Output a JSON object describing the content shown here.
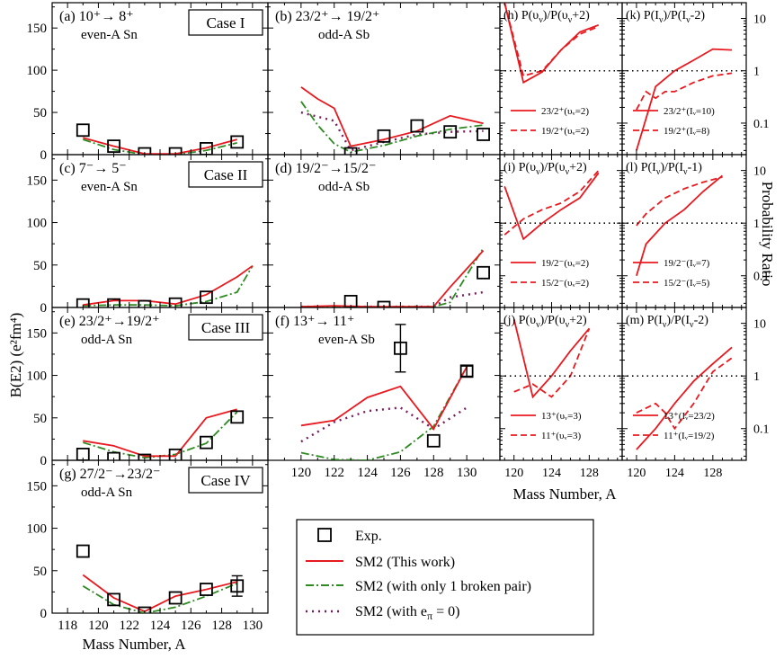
{
  "colors": {
    "sm2": "#e8191f",
    "one_pair": "#2e8b22",
    "epi0": "#7a1a5e",
    "exp": "#000000",
    "ratio": "#e8191f"
  },
  "axes": {
    "left_ylabel": "B(E2) (e²fm⁴)",
    "left_xlabel": "Mass Number, A",
    "right_xlabel": "Mass Number, A",
    "right_ylabel": "Probability Ratio",
    "left_yticks": [
      "0",
      "50",
      "100",
      "150"
    ],
    "left_xticks_col1": [
      "118",
      "120",
      "122",
      "124",
      "126",
      "128",
      "130"
    ],
    "left_xticks_col2": [
      "120",
      "122",
      "124",
      "126",
      "128",
      "130"
    ],
    "right_xticks": [
      "120",
      "124",
      "128"
    ],
    "right_yticks": [
      "0.1",
      "1",
      "10"
    ]
  },
  "legend": {
    "exp": "Exp.",
    "sm2": "SM2 (This work)",
    "one_pair": "SM2 (with only 1 broken pair)",
    "epi0": "SM2 (with e",
    "epi0_sub": "π",
    "epi0_tail": " = 0)"
  },
  "chart_data": [
    {
      "id": "a",
      "type": "line",
      "title": "(a)  10⁺→ 8⁺",
      "subtitle": "even-A Sn",
      "case": "Case I",
      "ylim": [
        0,
        180
      ],
      "xlim": [
        117,
        131
      ],
      "sm2": {
        "x": [
          119,
          121,
          123,
          125,
          127,
          129
        ],
        "y": [
          20,
          10,
          1,
          1,
          8,
          18
        ]
      },
      "one_pair": {
        "x": [
          119,
          121,
          123,
          125,
          127,
          129
        ],
        "y": [
          18,
          6,
          0,
          0,
          5,
          14
        ]
      },
      "exp": {
        "x": [
          119,
          121,
          123,
          125,
          127,
          129
        ],
        "y": [
          29,
          10,
          1,
          1,
          7,
          15
        ]
      }
    },
    {
      "id": "b",
      "type": "line",
      "title": "(b) 23/2⁺→ 19/2⁺",
      "subtitle": "odd-A Sb",
      "ylim": [
        0,
        180
      ],
      "xlim": [
        118,
        132
      ],
      "sm2": {
        "x": [
          120,
          121,
          122,
          123,
          125,
          127,
          129,
          131
        ],
        "y": [
          80,
          66,
          55,
          10,
          18,
          28,
          46,
          37
        ]
      },
      "one_pair": {
        "x": [
          120,
          121,
          122,
          123,
          125,
          127,
          129,
          131
        ],
        "y": [
          63,
          35,
          13,
          3,
          11,
          22,
          30,
          35
        ]
      },
      "epi0": {
        "x": [
          120,
          121,
          122,
          123,
          125,
          127,
          129,
          131
        ],
        "y": [
          50,
          45,
          40,
          5,
          15,
          24,
          27,
          28
        ]
      },
      "exp": {
        "x": [
          123,
          125,
          127,
          129,
          131
        ],
        "y": [
          1,
          22,
          34,
          27,
          24
        ]
      }
    },
    {
      "id": "c",
      "type": "line",
      "title": "(c)  7⁻→ 5⁻",
      "subtitle": "even-A Sn",
      "case": "Case II",
      "ylim": [
        0,
        180
      ],
      "xlim": [
        117,
        131
      ],
      "sm2": {
        "x": [
          119,
          121,
          123,
          125,
          127,
          129,
          130
        ],
        "y": [
          3,
          8,
          8,
          4,
          15,
          36,
          49
        ]
      },
      "one_pair": {
        "x": [
          119,
          121,
          123,
          125,
          127,
          129,
          130
        ],
        "y": [
          2,
          3,
          3,
          2,
          7,
          18,
          49
        ]
      },
      "exp": {
        "x": [
          119,
          121,
          123,
          125,
          127
        ],
        "y": [
          3,
          3,
          1,
          4,
          12
        ]
      }
    },
    {
      "id": "d",
      "type": "line",
      "title": "(d) 19/2⁻→15/2⁻",
      "subtitle": "odd-A Sb",
      "ylim": [
        0,
        180
      ],
      "xlim": [
        118,
        132
      ],
      "sm2": {
        "x": [
          120,
          122,
          124,
          126,
          128,
          129,
          131
        ],
        "y": [
          1,
          2,
          1,
          1,
          1,
          24,
          67
        ]
      },
      "one_pair": {
        "x": [
          120,
          122,
          124,
          126,
          128,
          129,
          131
        ],
        "y": [
          1,
          1,
          1,
          1,
          1,
          6,
          70
        ]
      },
      "epi0": {
        "x": [
          120,
          122,
          124,
          126,
          128,
          129,
          131
        ],
        "y": [
          1,
          1,
          1,
          1,
          1,
          12,
          18
        ]
      },
      "exp": {
        "x": [
          123,
          125,
          131
        ],
        "y": [
          7,
          0,
          41
        ]
      }
    },
    {
      "id": "e",
      "type": "line",
      "title": "(e) 23/2⁺→19/2⁺",
      "subtitle": "odd-A Sn",
      "case": "Case III",
      "ylim": [
        0,
        180
      ],
      "xlim": [
        117,
        131
      ],
      "sm2": {
        "x": [
          119,
          121,
          123,
          125,
          127,
          129
        ],
        "y": [
          23,
          17,
          5,
          5,
          50,
          60
        ]
      },
      "one_pair": {
        "x": [
          119,
          121,
          123,
          125,
          127,
          129
        ],
        "y": [
          21,
          10,
          3,
          7,
          20,
          57
        ]
      },
      "exp": {
        "x": [
          119,
          121,
          123,
          125,
          127,
          129
        ],
        "y": [
          7,
          2,
          0,
          6,
          21,
          51
        ]
      }
    },
    {
      "id": "f",
      "type": "line",
      "title": "(f)  13⁺→ 11⁺",
      "subtitle": "even-A Sb",
      "ylim": [
        0,
        180
      ],
      "xlim": [
        118,
        132
      ],
      "sm2": {
        "x": [
          120,
          122,
          124,
          126,
          128,
          130
        ],
        "y": [
          41,
          47,
          74,
          87,
          37,
          110
        ]
      },
      "one_pair": {
        "x": [
          120,
          122,
          124,
          126,
          128,
          130
        ],
        "y": [
          9,
          1,
          0,
          10,
          40,
          110
        ]
      },
      "epi0": {
        "x": [
          120,
          122,
          124,
          126,
          128,
          130
        ],
        "y": [
          22,
          45,
          58,
          62,
          37,
          62
        ]
      },
      "exp": {
        "x": [
          126,
          128,
          130
        ],
        "y": [
          132,
          23,
          105
        ],
        "err": [
          28,
          0,
          6
        ]
      }
    },
    {
      "id": "g",
      "type": "line",
      "title": "(g) 27/2⁻→23/2⁻",
      "subtitle": "odd-A Sn",
      "case": "Case IV",
      "ylim": [
        0,
        180
      ],
      "xlim": [
        117,
        131
      ],
      "sm2": {
        "x": [
          119,
          121,
          123,
          125,
          127,
          129
        ],
        "y": [
          45,
          18,
          2,
          20,
          28,
          37
        ]
      },
      "one_pair": {
        "x": [
          119,
          121,
          123,
          125,
          127,
          129
        ],
        "y": [
          32,
          10,
          0,
          7,
          20,
          35
        ]
      },
      "exp": {
        "x": [
          119,
          121,
          123,
          125,
          127,
          129
        ],
        "y": [
          73,
          16,
          0,
          18,
          28,
          32
        ],
        "err": [
          0,
          0,
          0,
          0,
          0,
          12
        ]
      }
    },
    {
      "id": "h",
      "type": "line",
      "title": "(h) P(υ",
      "title2": ")/P(υ",
      "title3": "+2)",
      "ylog": true,
      "ylim": [
        0.025,
        20
      ],
      "xlim": [
        118.5,
        131.5
      ],
      "series": [
        {
          "name": "23/2⁺(υᵥ=2)",
          "x": [
            119,
            121,
            123,
            125,
            127,
            129
          ],
          "y": [
            20,
            0.6,
            0.95,
            2.5,
            5.5,
            7.5
          ],
          "dash": false
        },
        {
          "name": "19/2⁺(υᵥ=2)",
          "x": [
            119,
            121,
            123,
            125,
            127,
            129
          ],
          "y": [
            20,
            0.8,
            1.0,
            2.5,
            5.0,
            7.0
          ],
          "dash": true
        }
      ]
    },
    {
      "id": "k",
      "type": "line",
      "title": "(k) P(I",
      "title2": ")/P(I",
      "title3": "-2)",
      "ylog": true,
      "ylim": [
        0.025,
        20
      ],
      "xlim": [
        118.5,
        131.5
      ],
      "series": [
        {
          "name": "23/2⁺(Iᵥ=10)",
          "x": [
            120,
            122,
            124,
            126,
            128,
            130
          ],
          "y": [
            0.03,
            0.5,
            1.0,
            1.6,
            2.6,
            2.5
          ],
          "dash": false
        },
        {
          "name": "19/2⁺(Iᵥ=8)",
          "x": [
            120,
            121,
            122,
            123,
            124,
            126,
            128,
            130
          ],
          "y": [
            0.18,
            0.4,
            0.3,
            0.4,
            0.4,
            0.6,
            0.8,
            0.9
          ],
          "dash": true
        }
      ]
    },
    {
      "id": "i",
      "type": "line",
      "title": "(i) P(υ",
      "title2": ")/P(υ",
      "title3": "+2)",
      "ylog": true,
      "ylim": [
        0.025,
        20
      ],
      "xlim": [
        118.5,
        131.5
      ],
      "series": [
        {
          "name": "19/2⁻(υᵥ=2)",
          "x": [
            119,
            121,
            123,
            125,
            127,
            129
          ],
          "y": [
            5,
            0.5,
            1.0,
            1.8,
            3.0,
            9.0
          ],
          "dash": false
        },
        {
          "name": "15/2⁻(υᵥ=2)",
          "x": [
            119,
            121,
            123,
            125,
            127,
            129
          ],
          "y": [
            0.6,
            1.2,
            1.8,
            2.4,
            4.0,
            10.0
          ],
          "dash": true
        }
      ]
    },
    {
      "id": "l",
      "type": "line",
      "title": "(l) P(I",
      "title2": ")/P(I",
      "title3": "-1)",
      "ylog": true,
      "ylim": [
        0.025,
        20
      ],
      "xlim": [
        118.5,
        131.5
      ],
      "series": [
        {
          "name": "19/2⁻(Iᵥ=7)",
          "x": [
            120,
            121,
            123,
            125,
            127,
            129
          ],
          "y": [
            0.1,
            0.4,
            1.0,
            1.8,
            4.0,
            8.0
          ],
          "dash": false
        },
        {
          "name": "15/2⁻(Iᵥ=5)",
          "x": [
            120,
            121,
            123,
            125,
            127,
            129
          ],
          "y": [
            0.9,
            1.5,
            3.0,
            4.5,
            6.0,
            7.5
          ],
          "dash": true
        }
      ]
    },
    {
      "id": "j",
      "type": "line",
      "title": "(j) P(υ",
      "title2": ")/P(υ",
      "title3": "+2)",
      "ylog": true,
      "ylim": [
        0.025,
        20
      ],
      "xlim": [
        118.5,
        131.5
      ],
      "series": [
        {
          "name": "13⁺(υᵥ=3)",
          "x": [
            120,
            122,
            124,
            126,
            128
          ],
          "y": [
            12,
            0.4,
            1.0,
            3.0,
            8.0
          ],
          "dash": false
        },
        {
          "name": "11⁺(υᵥ=3)",
          "x": [
            120,
            122,
            124,
            126,
            128
          ],
          "y": [
            0.5,
            0.7,
            0.4,
            1.0,
            8.0
          ],
          "dash": true
        }
      ]
    },
    {
      "id": "m",
      "type": "line",
      "title": "(m) P(I",
      "title2": ")/P(I",
      "title3": "-2)",
      "ylog": true,
      "ylim": [
        0.025,
        20
      ],
      "xlim": [
        118.5,
        131.5
      ],
      "series": [
        {
          "name": "13⁺(Iᵥ=23/2)",
          "x": [
            120,
            122,
            124,
            126,
            128,
            130
          ],
          "y": [
            0.04,
            0.1,
            0.3,
            0.8,
            1.7,
            3.5
          ],
          "dash": false
        },
        {
          "name": "11⁺(Iᵥ=19/2)",
          "x": [
            120,
            122,
            123,
            124,
            126,
            128,
            130
          ],
          "y": [
            0.2,
            0.3,
            0.2,
            0.1,
            0.3,
            1.2,
            2.2
          ],
          "dash": true
        }
      ]
    }
  ]
}
